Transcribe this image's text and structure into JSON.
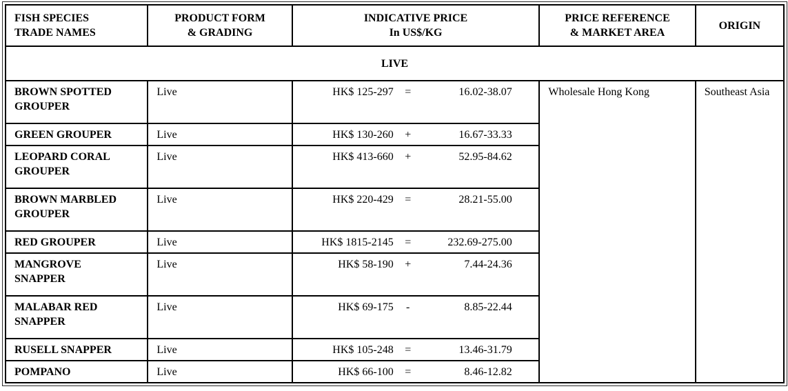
{
  "table": {
    "columns": [
      "FISH SPECIES\nTRADE NAMES",
      "PRODUCT FORM\n& GRADING",
      "INDICATIVE PRICE\nIn US$/KG",
      "PRICE REFERENCE\n& MARKET AREA",
      "ORIGIN"
    ],
    "section_label": "LIVE",
    "price_reference": "Wholesale Hong Kong",
    "origin": "Southeast Asia",
    "rows": [
      {
        "species": "BROWN SPOTTED\nGROUPER",
        "form": "Live",
        "price_hkd": "HK$ 125-297",
        "trend": "=",
        "price_usd": "16.02-38.07"
      },
      {
        "species": "GREEN GROUPER",
        "form": "Live",
        "price_hkd": "HK$ 130-260",
        "trend": "+",
        "price_usd": "16.67-33.33"
      },
      {
        "species": "LEOPARD CORAL\nGROUPER",
        "form": "Live",
        "price_hkd": "HK$ 413-660",
        "trend": "+",
        "price_usd": "52.95-84.62"
      },
      {
        "species": "BROWN MARBLED\nGROUPER",
        "form": "Live",
        "price_hkd": "HK$ 220-429",
        "trend": "=",
        "price_usd": "28.21-55.00"
      },
      {
        "species": "RED GROUPER",
        "form": "Live",
        "price_hkd": "HK$ 1815-2145",
        "trend": "=",
        "price_usd": "232.69-275.00"
      },
      {
        "species": "MANGROVE\nSNAPPER",
        "form": "Live",
        "price_hkd": "HK$ 58-190",
        "trend": "+",
        "price_usd": "7.44-24.36"
      },
      {
        "species": "MALABAR RED\nSNAPPER",
        "form": "Live",
        "price_hkd": "HK$ 69-175",
        "trend": "-",
        "price_usd": "8.85-22.44"
      },
      {
        "species": "RUSELL SNAPPER",
        "form": "Live",
        "price_hkd": "HK$ 105-248",
        "trend": "=",
        "price_usd": "13.46-31.79"
      },
      {
        "species": "POMPANO",
        "form": "Live",
        "price_hkd": "HK$ 66-100",
        "trend": "=",
        "price_usd": "8.46-12.82"
      }
    ]
  }
}
